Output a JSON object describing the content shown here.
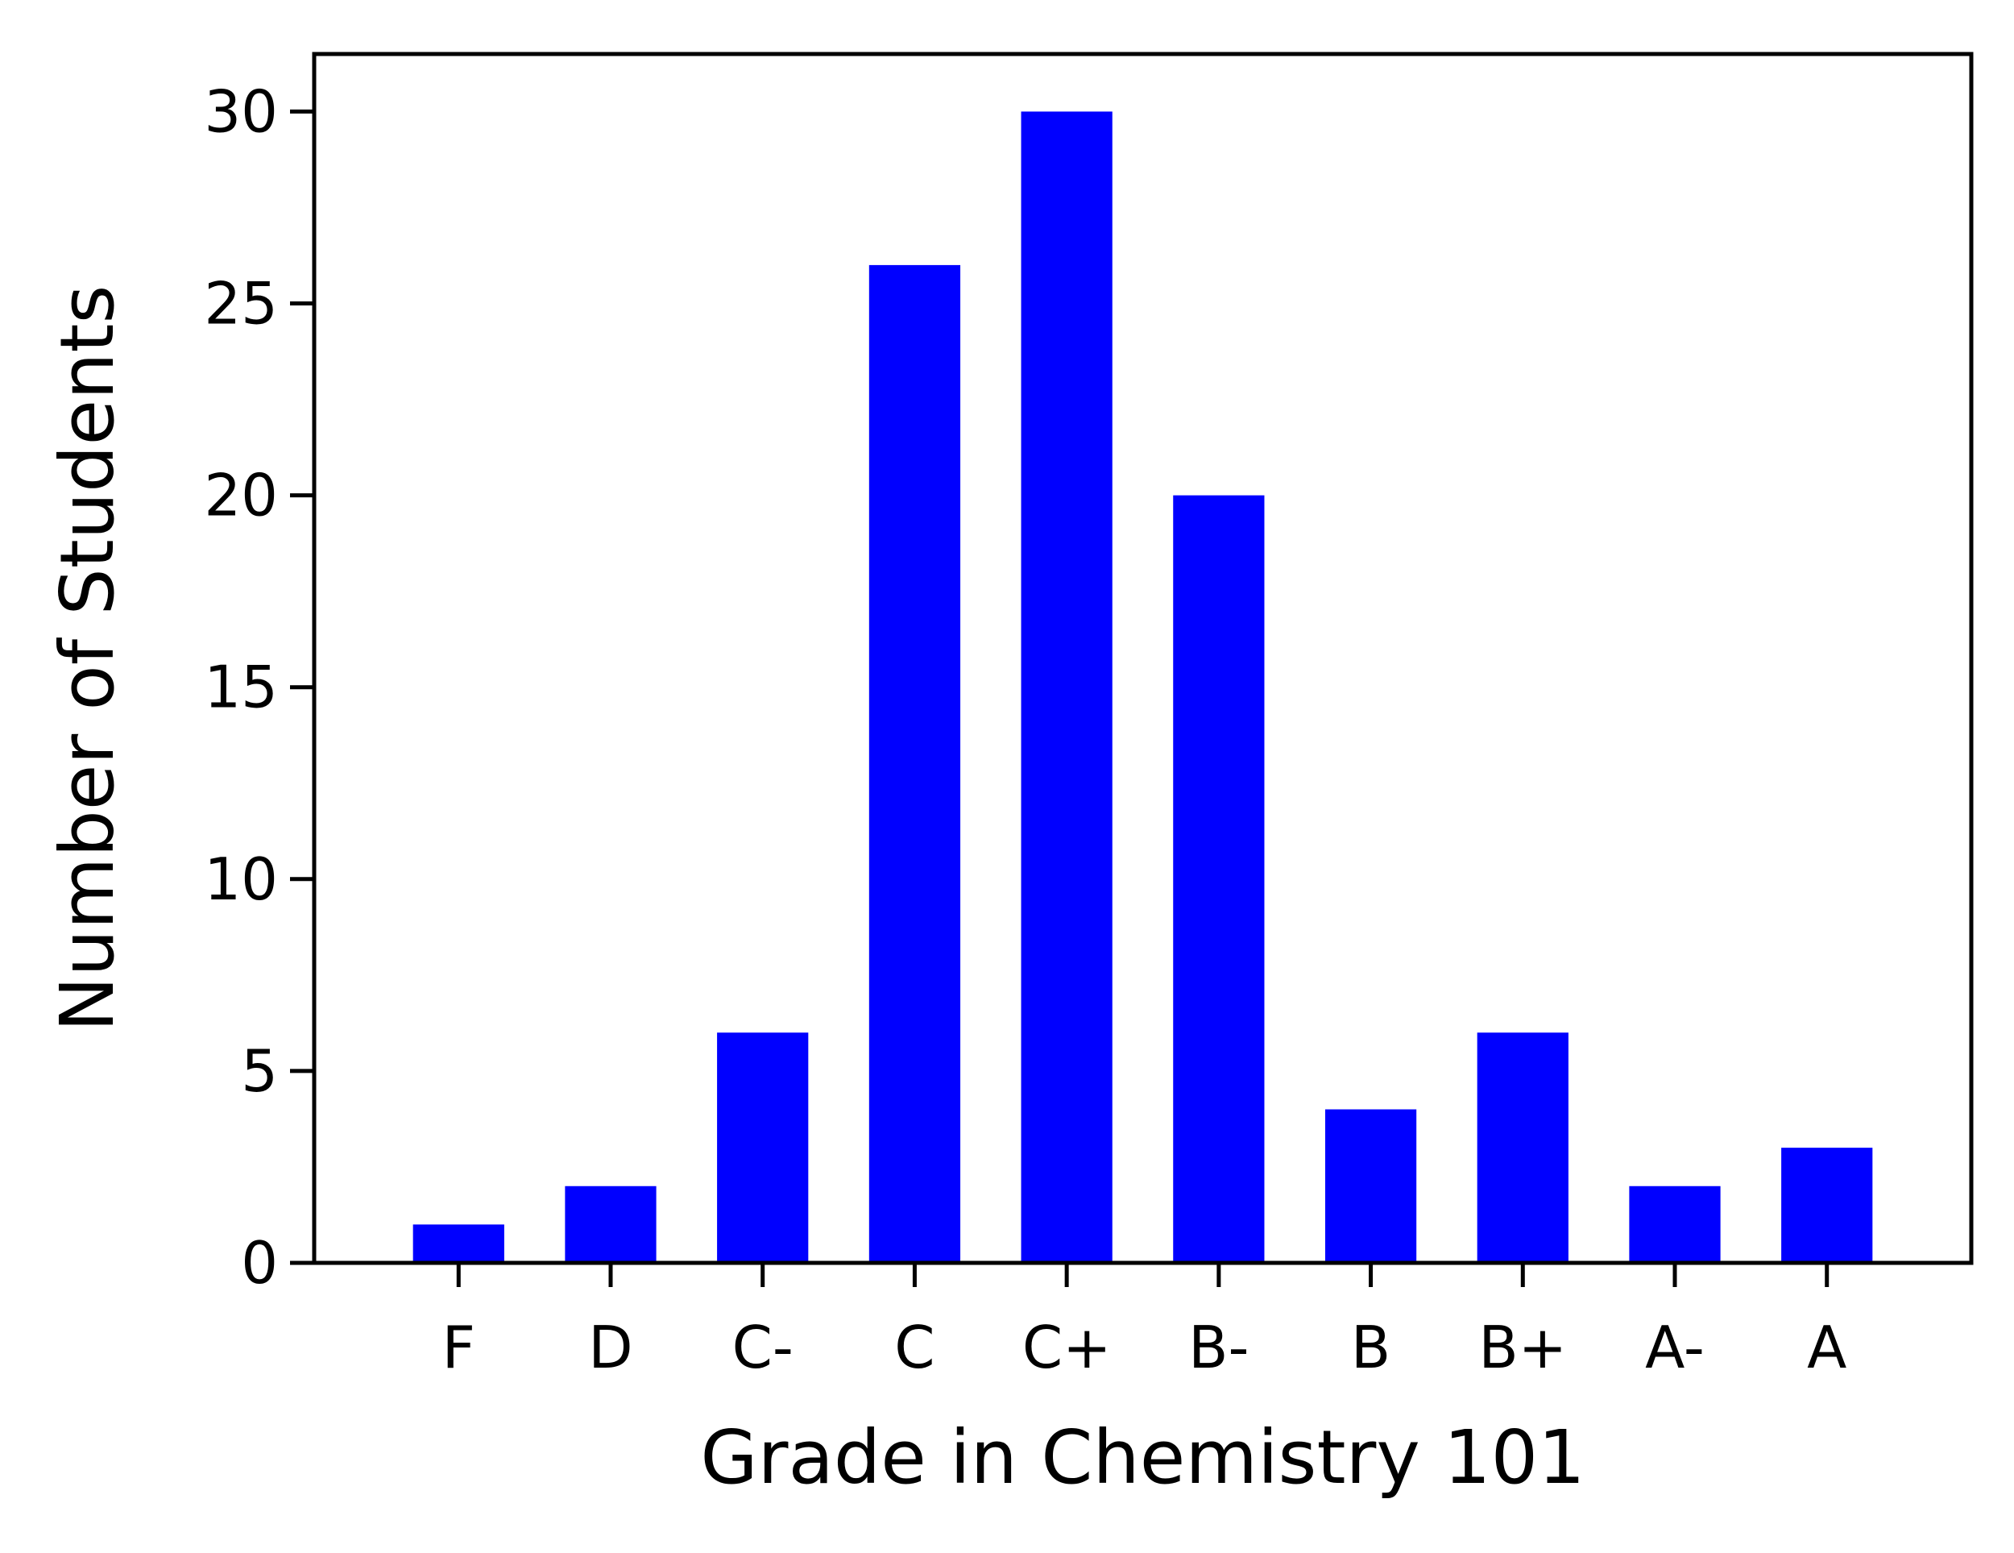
{
  "chart_data": {
    "type": "bar",
    "title": "",
    "xlabel": "Grade in Chemistry 101",
    "ylabel": "Number of Students",
    "categories": [
      "F",
      "D",
      "C-",
      "C",
      "C+",
      "B-",
      "B",
      "B+",
      "A-",
      "A"
    ],
    "values": [
      1,
      2,
      6,
      26,
      30,
      20,
      4,
      6,
      2,
      3
    ],
    "ylim": [
      0,
      31.5
    ],
    "yticks": [
      0,
      5,
      10,
      15,
      20,
      25,
      30
    ],
    "bar_color": "#0000ff",
    "grid": false,
    "legend": "none"
  }
}
